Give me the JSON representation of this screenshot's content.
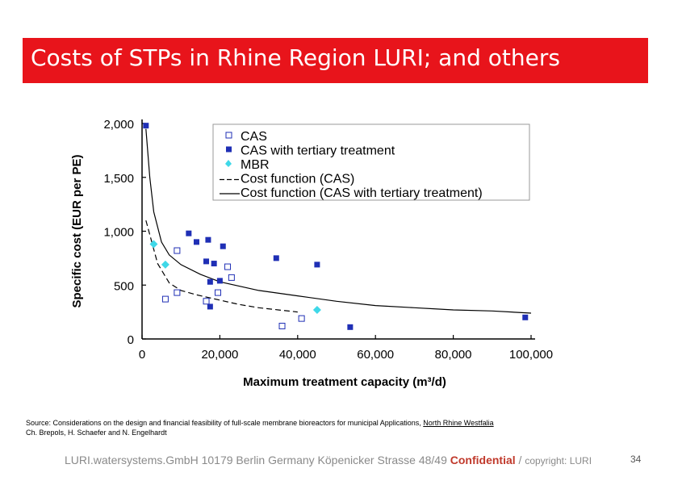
{
  "slide": {
    "title": "Costs of STPs in Rhine Region LURI; and others",
    "source_line1_prefix": "Source: Considerations on the design and financial feasibility of full-scale membrane bioreactors for municipal Applications, ",
    "source_line1_link": "North Rhine Westfalia",
    "source_line2": "Ch. Brepols, H. Schaefer and N. Engelhardt",
    "footer_main": "LURI.watersystems.GmbH 10179 Berlin Germany Köpenicker Strasse 48/49 ",
    "footer_confidential": "Confidential",
    "footer_sep": " / ",
    "footer_copyright": "copyright: LURI",
    "page_number": "34",
    "title_bg": "#e8141b"
  },
  "chart_data": {
    "type": "scatter",
    "xlabel": "Maximum treatment capacity (m³/d)",
    "ylabel": "Specific cost (EUR per PE)",
    "xlim": [
      0,
      100000
    ],
    "ylim": [
      0,
      2000
    ],
    "x_ticks": [
      "0",
      "20,000",
      "40,000",
      "60,000",
      "80,000",
      "100,000"
    ],
    "x_tick_values": [
      0,
      20000,
      40000,
      60000,
      80000,
      100000
    ],
    "y_ticks": [
      "0",
      "500",
      "1,000",
      "1,500",
      "2,000"
    ],
    "y_tick_values": [
      0,
      500,
      1000,
      1500,
      2000
    ],
    "legend_position": "top-right",
    "grid": false,
    "series": [
      {
        "name": "CAS",
        "marker": "open-square",
        "color": "#1f2fb5",
        "points": [
          [
            6000,
            370
          ],
          [
            9000,
            430
          ],
          [
            9000,
            820
          ],
          [
            16500,
            350
          ],
          [
            19500,
            430
          ],
          [
            22000,
            670
          ],
          [
            23000,
            570
          ],
          [
            36000,
            120
          ],
          [
            41000,
            190
          ]
        ]
      },
      {
        "name": "CAS with tertiary treatment",
        "marker": "filled-square",
        "color": "#1f2fb5",
        "points": [
          [
            1000,
            1980
          ],
          [
            12000,
            980
          ],
          [
            14000,
            900
          ],
          [
            16500,
            720
          ],
          [
            17000,
            920
          ],
          [
            17500,
            530
          ],
          [
            17500,
            300
          ],
          [
            18500,
            700
          ],
          [
            20000,
            540
          ],
          [
            20800,
            860
          ],
          [
            34500,
            750
          ],
          [
            45000,
            690
          ],
          [
            53500,
            110
          ],
          [
            98500,
            200
          ]
        ]
      },
      {
        "name": "MBR",
        "marker": "diamond",
        "color": "#3fd8e8",
        "points": [
          [
            3000,
            880
          ],
          [
            6000,
            690
          ],
          [
            45000,
            270
          ]
        ]
      },
      {
        "name": "Cost function (CAS)",
        "marker": "dashed-line",
        "color": "#000000",
        "points": [
          [
            1000,
            1100
          ],
          [
            4000,
            700
          ],
          [
            7000,
            520
          ],
          [
            10000,
            450
          ],
          [
            14000,
            410
          ],
          [
            20000,
            360
          ],
          [
            25000,
            320
          ],
          [
            30000,
            290
          ],
          [
            35000,
            270
          ],
          [
            40000,
            250
          ]
        ]
      },
      {
        "name": "Cost function (CAS with tertiary treatment)",
        "marker": "solid-line",
        "color": "#000000",
        "points": [
          [
            1000,
            1950
          ],
          [
            2000,
            1500
          ],
          [
            3000,
            1180
          ],
          [
            5000,
            900
          ],
          [
            7000,
            780
          ],
          [
            10000,
            690
          ],
          [
            15000,
            600
          ],
          [
            20000,
            530
          ],
          [
            30000,
            450
          ],
          [
            40000,
            400
          ],
          [
            50000,
            350
          ],
          [
            60000,
            310
          ],
          [
            70000,
            290
          ],
          [
            80000,
            270
          ],
          [
            90000,
            260
          ],
          [
            100000,
            240
          ]
        ]
      }
    ]
  }
}
